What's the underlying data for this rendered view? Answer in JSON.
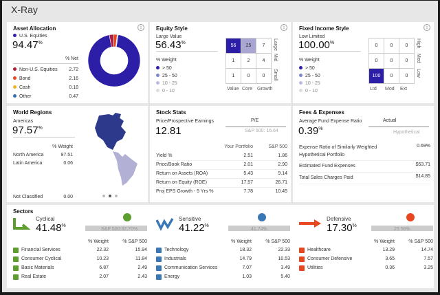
{
  "title": "X-Ray",
  "asset_allocation": {
    "title": "Asset Allocation",
    "main": {
      "label": "U.S. Equities",
      "value": "94.47",
      "unit": "%",
      "color": "#2d1ea8"
    },
    "col_header": "% Net",
    "items": [
      {
        "label": "Non-U.S. Equities",
        "value": "2.72",
        "color": "#b01c3a"
      },
      {
        "label": "Bond",
        "value": "2.16",
        "color": "#e8461e"
      },
      {
        "label": "Cash",
        "value": "0.18",
        "color": "#f0b323"
      },
      {
        "label": "Other",
        "value": "0.47",
        "color": "#3a6fb5"
      }
    ],
    "donut": [
      94.47,
      2.72,
      2.16,
      0.18,
      0.47
    ]
  },
  "equity_style": {
    "title": "Equity Style",
    "main_label": "Large Value",
    "main_value": "56.43",
    "unit": "%",
    "weight_label": "% Weight",
    "legend": [
      "> 50",
      "25 - 50",
      "10 - 25",
      "0 - 10"
    ],
    "grid": [
      "56",
      "25",
      "7",
      "1",
      "2",
      "4",
      "1",
      "0",
      "0"
    ],
    "grid_levels": [
      4,
      3,
      1,
      1,
      1,
      1,
      1,
      1,
      1
    ],
    "col_labels": [
      "Value",
      "Core",
      "Growth"
    ],
    "row_labels": [
      "Large",
      "Mid",
      "Small"
    ]
  },
  "fixed_income": {
    "title": "Fixed Income Style",
    "main_label": "Low Limited",
    "main_value": "100.00",
    "unit": "%",
    "weight_label": "% Weight",
    "legend": [
      "> 50",
      "25 - 50",
      "10 - 25",
      "0 - 10"
    ],
    "grid": [
      "0",
      "0",
      "0",
      "0",
      "0",
      "0",
      "100",
      "0",
      "0"
    ],
    "grid_levels": [
      1,
      1,
      1,
      1,
      1,
      1,
      4,
      1,
      1
    ],
    "col_labels": [
      "Ltd",
      "Mod",
      "Ext"
    ],
    "row_labels": [
      "High",
      "Med",
      "Low"
    ]
  },
  "world_regions": {
    "title": "World Regions",
    "main_label": "Americas",
    "main_value": "97.57",
    "unit": "%",
    "col_header": "% Weight",
    "items": [
      {
        "label": "North America",
        "value": "97.51"
      },
      {
        "label": "Latin America",
        "value": "0.06"
      }
    ],
    "not_classified": {
      "label": "Not Classified",
      "value": "0.00"
    }
  },
  "stock_stats": {
    "title": "Stock Stats",
    "main_label": "Price/Prospective Earnings",
    "main_value": "12.81",
    "pe_label": "P/E",
    "pe_bench": "S&P 500: 16.64",
    "col_portfolio": "Your Portfolio",
    "col_bench": "S&P 500",
    "rows": [
      {
        "label": "Yield %",
        "p": "2.51",
        "b": "1.86"
      },
      {
        "label": "Price/Book Ratio",
        "p": "2.01",
        "b": "2.90"
      },
      {
        "label": "Return on Assets (ROA)",
        "p": "5.43",
        "b": "9.14"
      },
      {
        "label": "Return on Equity (ROE)",
        "p": "17.57",
        "b": "26.71"
      },
      {
        "label": "Proj EPS Growth - 5 Yrs %",
        "p": "7.78",
        "b": "10.45"
      }
    ]
  },
  "fees": {
    "title": "Fees & Expenses",
    "main_label": "Average Fund Expense Ratio",
    "main_value": "0.39",
    "unit": "%",
    "actual_label": "Actual",
    "hyp_label": "Hypothetical",
    "rows": [
      {
        "label": "Expense Ratio of Similarly Weighted Hypothetical Portfolio",
        "value": "0.69%"
      },
      {
        "label": "Estimated Fund Expenses",
        "value": "$53.71"
      },
      {
        "label": "Total Sales Charges Paid",
        "value": "$14.85"
      }
    ]
  },
  "sectors": {
    "title": "Sectors",
    "col_weight": "% Weight",
    "col_bench": "% S&P 500",
    "groups": [
      {
        "name": "Cyclical",
        "value": "41.48",
        "unit": "%",
        "bench": "S&P 500:32.70%",
        "color": "#5e9e2e",
        "items": [
          {
            "label": "Financial Services",
            "w": "22.32",
            "b": "15.94"
          },
          {
            "label": "Consumer Cyclical",
            "w": "10.23",
            "b": "11.84"
          },
          {
            "label": "Basic Materials",
            "w": "6.87",
            "b": "2.49"
          },
          {
            "label": "Real Estate",
            "w": "2.07",
            "b": "2.43"
          }
        ]
      },
      {
        "name": "Sensitive",
        "value": "41.22",
        "unit": "%",
        "bench": "41.74%",
        "color": "#3a78b5",
        "items": [
          {
            "label": "Technology",
            "w": "18.32",
            "b": "22.33"
          },
          {
            "label": "Industrials",
            "w": "14.79",
            "b": "10.53"
          },
          {
            "label": "Communication Services",
            "w": "7.07",
            "b": "3.49"
          },
          {
            "label": "Energy",
            "w": "1.03",
            "b": "5.40"
          }
        ]
      },
      {
        "name": "Defensive",
        "value": "17.30",
        "unit": "%",
        "bench": "25.56%",
        "color": "#e8461e",
        "items": [
          {
            "label": "Healthcare",
            "w": "13.29",
            "b": "14.74"
          },
          {
            "label": "Consumer Defensive",
            "w": "3.65",
            "b": "7.57"
          },
          {
            "label": "Utilities",
            "w": "0.36",
            "b": "3.25"
          }
        ]
      }
    ]
  }
}
